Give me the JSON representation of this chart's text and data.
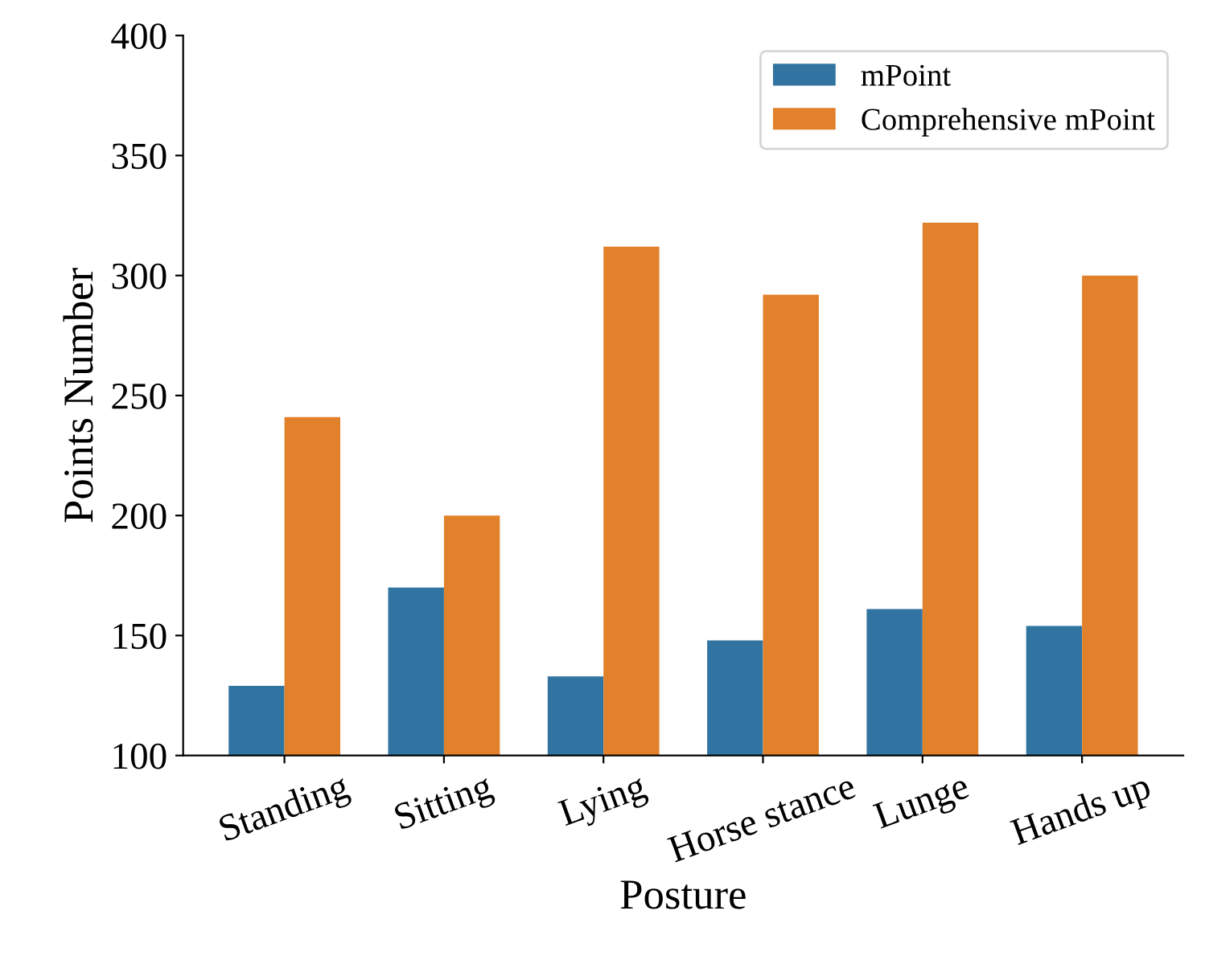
{
  "chart_data": {
    "type": "bar",
    "xlabel": "Posture",
    "ylabel": "Points Number",
    "categories": [
      "Standing",
      "Sitting",
      "Lying",
      "Horse stance",
      "Lunge",
      "Hands up"
    ],
    "series": [
      {
        "name": "mPoint",
        "color": "#3274a1",
        "values": [
          129,
          170,
          133,
          148,
          161,
          154
        ]
      },
      {
        "name": "Comprehensive mPoint",
        "color": "#e1812c",
        "values": [
          241,
          200,
          312,
          292,
          322,
          300
        ]
      }
    ],
    "ylim": [
      100,
      400
    ],
    "yticks": [
      100,
      150,
      200,
      250,
      300,
      350,
      400
    ],
    "grid": false,
    "legend": "top right"
  }
}
